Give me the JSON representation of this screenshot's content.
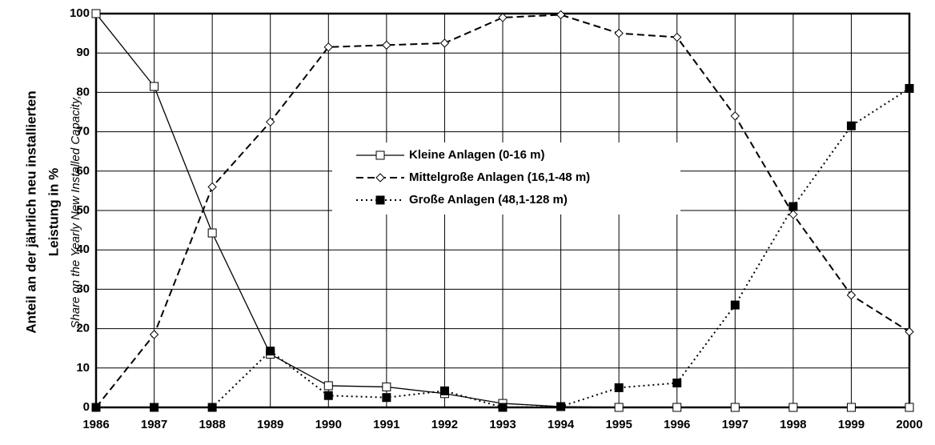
{
  "chart_data": {
    "type": "line",
    "y_label_lines": [
      "Anteil an der jährlich neu installierten",
      "Leistung in %"
    ],
    "y_label_en": "Share on the  Yearly New Installed Capacity, ",
    "categories": [
      "1986",
      "1987",
      "1988",
      "1989",
      "1990",
      "1991",
      "1992",
      "1993",
      "1994",
      "1995",
      "1996",
      "1997",
      "1998",
      "1999",
      "2000"
    ],
    "series": [
      {
        "name": "Kleine Anlagen (0-16 m)",
        "color": "#000000",
        "marker": "square-open",
        "dash": "solid",
        "values": [
          100,
          81.5,
          44.3,
          13.5,
          5.5,
          5.2,
          3.5,
          1,
          0.2,
          0,
          0,
          0,
          0,
          0,
          0
        ]
      },
      {
        "name": "Mittelgroße Anlagen (16,1-48 m)",
        "color": "#000000",
        "marker": "diamond-open",
        "dash": "dashed",
        "values": [
          0,
          18.5,
          56,
          72.5,
          91.5,
          92,
          92.5,
          99,
          99.7,
          95,
          94,
          74,
          49,
          28.5,
          19.2
        ]
      },
      {
        "name": "Große Anlagen (48,1-128 m)",
        "color": "#000000",
        "marker": "square-filled",
        "dash": "dotted",
        "values": [
          0,
          0,
          0,
          14.3,
          3,
          2.5,
          4.2,
          0,
          0.2,
          5,
          6.2,
          26,
          51,
          71.5,
          81
        ]
      }
    ],
    "ylim": [
      0,
      100
    ],
    "yticks": [
      0,
      10,
      20,
      30,
      40,
      50,
      60,
      70,
      80,
      90,
      100
    ],
    "grid": true,
    "legend": "center"
  }
}
